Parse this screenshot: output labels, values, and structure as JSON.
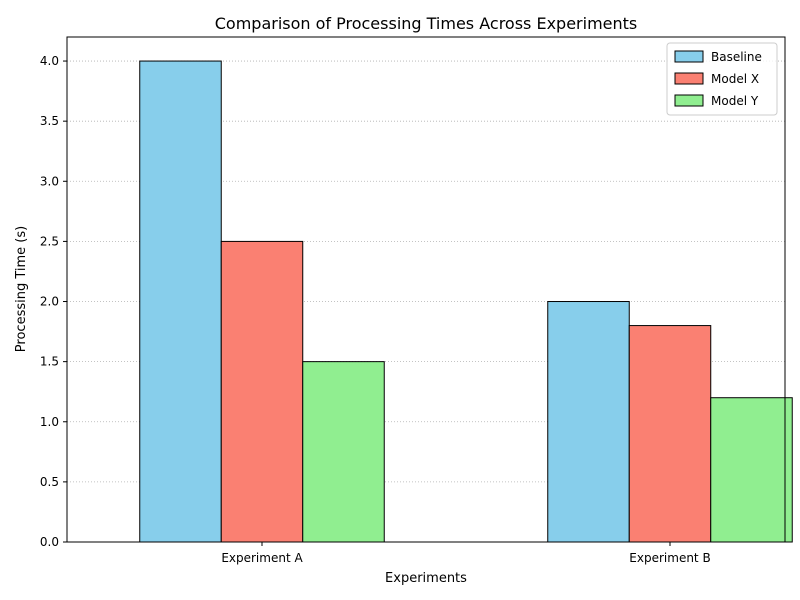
{
  "chart_data": {
    "type": "bar",
    "title": "Comparison of Processing Times Across Experiments",
    "xlabel": "Experiments",
    "ylabel": "Processing Time (s)",
    "categories": [
      "Experiment A",
      "Experiment B"
    ],
    "series": [
      {
        "name": "Baseline",
        "values": [
          4.0,
          2.0
        ],
        "color": "#87ceeb"
      },
      {
        "name": "Model X",
        "values": [
          2.5,
          1.8
        ],
        "color": "#fa8072"
      },
      {
        "name": "Model Y",
        "values": [
          1.5,
          1.2
        ],
        "color": "#90ee90"
      }
    ],
    "ylim": [
      0,
      4.2
    ],
    "yticks": [
      "0.0",
      "0.5",
      "1.0",
      "1.5",
      "2.0",
      "2.5",
      "3.0",
      "3.5",
      "4.0"
    ],
    "grid": "y-dotted",
    "legend_position": "top-right"
  }
}
